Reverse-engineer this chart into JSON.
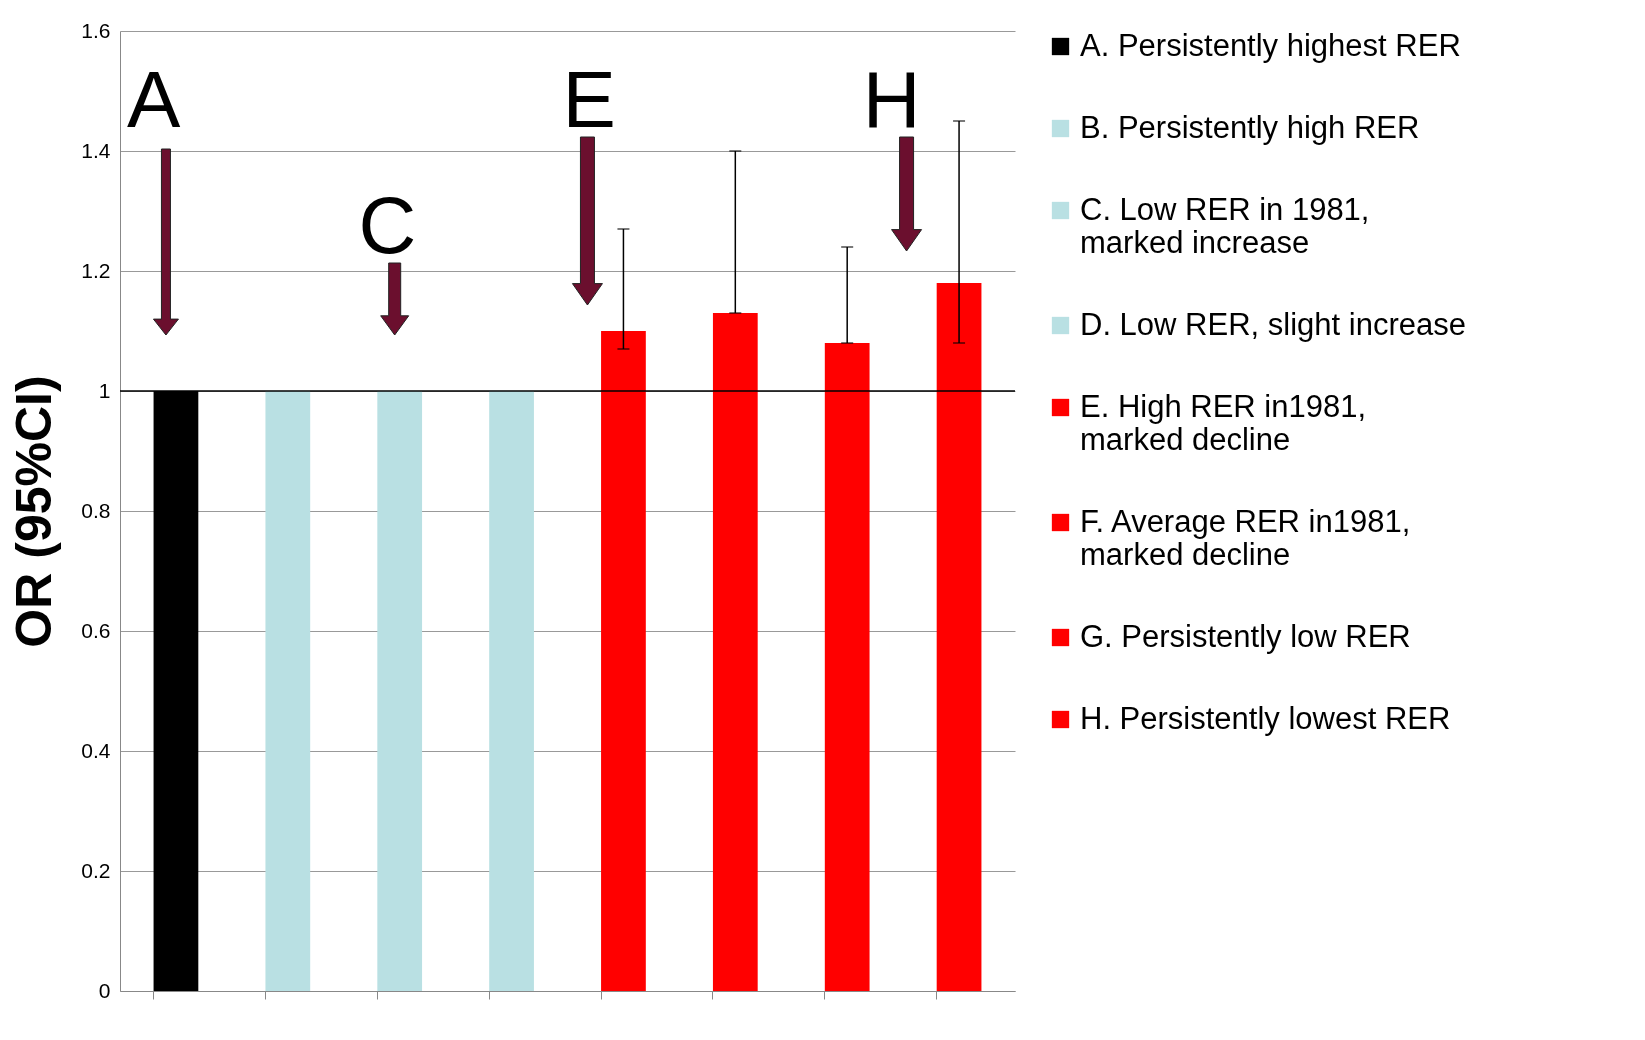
{
  "chart_data": {
    "type": "bar",
    "ylabel": "OR (95%CI)",
    "categories": [
      null,
      null,
      null,
      null,
      null,
      null,
      null,
      null
    ],
    "series": [
      {
        "name": "A. Persistently highest RER",
        "color": "#000000",
        "values": [
          1,
          null,
          null,
          null,
          null,
          null,
          null,
          null
        ]
      },
      {
        "name": "B. Persistently high RER",
        "color": "#b9e0e3",
        "values": [
          null,
          1,
          null,
          null,
          null,
          null,
          null,
          null
        ]
      },
      {
        "name": "C. Low RER in 1981, marked increase",
        "color": "#b9e0e3",
        "values": [
          null,
          null,
          1,
          null,
          null,
          null,
          null,
          null
        ]
      },
      {
        "name": "D. Low RER, slight increase",
        "color": "#b9e0e3",
        "values": [
          null,
          null,
          null,
          1,
          null,
          null,
          null,
          null
        ]
      },
      {
        "name": "E. High RER in1981, marked decline",
        "color": "#ff0000",
        "values": [
          null,
          null,
          null,
          null,
          1.1,
          null,
          null,
          null
        ],
        "errors": [
          null,
          null,
          null,
          null,
          [
            1.07,
            1.27
          ],
          null,
          null,
          null
        ]
      },
      {
        "name": "F. Average RER in1981, marked decline",
        "color": "#ff0000",
        "values": [
          null,
          null,
          null,
          null,
          null,
          1.13,
          null,
          null
        ],
        "errors": [
          null,
          null,
          null,
          null,
          null,
          [
            1.13,
            1.4
          ],
          null,
          null
        ]
      },
      {
        "name": "G. Persistently low RER",
        "color": "#ff0000",
        "values": [
          null,
          null,
          null,
          null,
          null,
          null,
          1.08,
          null
        ],
        "errors": [
          null,
          null,
          null,
          null,
          null,
          null,
          [
            1.08,
            1.24
          ],
          null
        ]
      },
      {
        "name": "H. Persistently lowest RER",
        "color": "#ff0000",
        "values": [
          null,
          null,
          null,
          null,
          null,
          null,
          null,
          1.18
        ],
        "errors": [
          null,
          null,
          null,
          null,
          null,
          null,
          null,
          [
            1.08,
            1.45
          ]
        ]
      }
    ],
    "ylim": [
      0,
      1.6
    ],
    "yticks": [
      0,
      0.2,
      0.4,
      0.6,
      0.8,
      1,
      1.2,
      1.4,
      1.6
    ],
    "grid": "y",
    "legend": "right",
    "tick_labels": "y",
    "ref_lines": [
      {
        "axis": "y",
        "value": 1,
        "color": "#000000"
      }
    ],
    "annotations": [
      "A",
      "C",
      "E",
      "H"
    ]
  }
}
